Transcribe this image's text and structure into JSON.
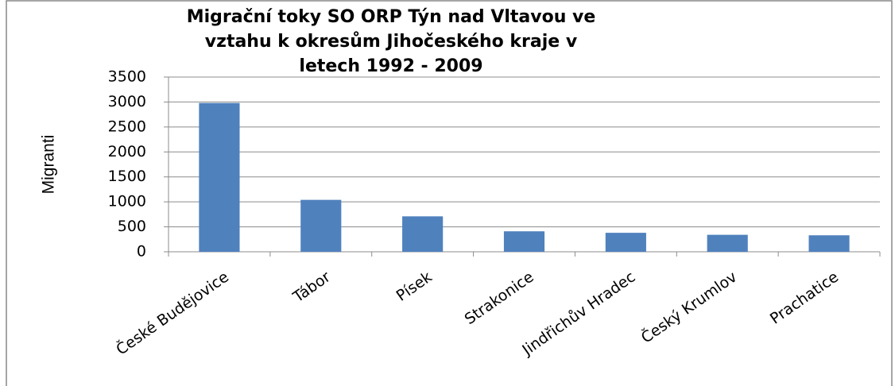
{
  "chart_data": {
    "type": "bar",
    "title": [
      "Migrační toky SO ORP Týn nad Vltavou ve",
      "vztahu k okresům Jihočeského kraje v",
      "letech 1992 - 2009"
    ],
    "y_label": "Migranti",
    "categories": [
      "České Budějovice",
      "Tábor",
      "Písek",
      "Strakonice",
      "Jindřichův Hradec",
      "Český Krumlov",
      "Prachatice"
    ],
    "values": [
      2980,
      1040,
      710,
      410,
      380,
      340,
      330
    ],
    "color": "#4f81bd",
    "ylim": [
      0,
      3500
    ],
    "yticks": [
      0,
      500,
      1000,
      1500,
      2000,
      2500,
      3000,
      3500
    ],
    "grid": true
  }
}
